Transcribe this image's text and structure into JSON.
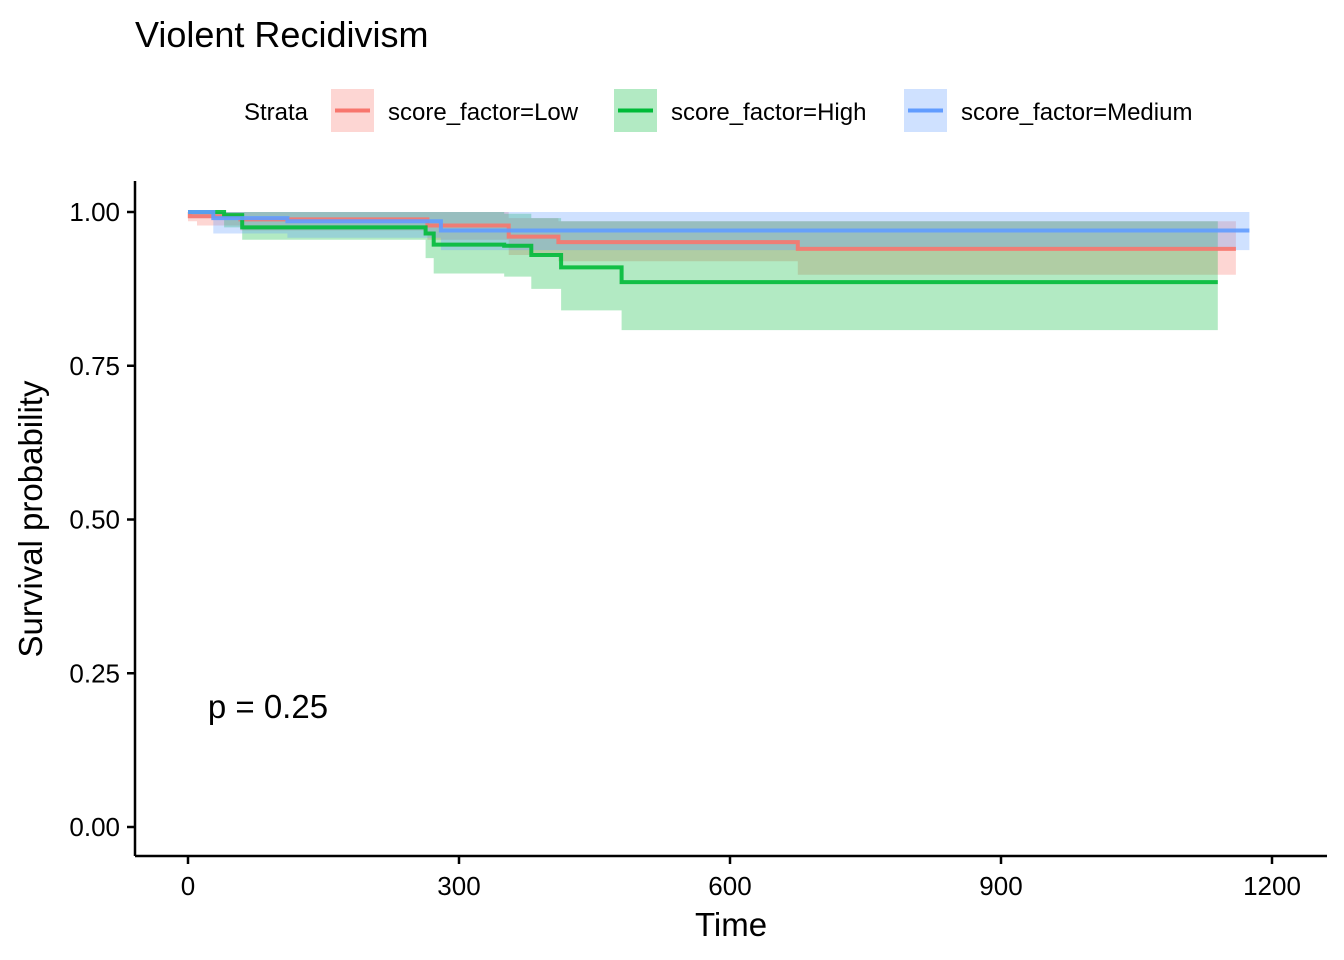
{
  "chart_data": {
    "type": "line",
    "title": "Violent Recidivism",
    "xlabel": "Time",
    "ylabel": "Survival probability",
    "xlim": [
      -20,
      1240
    ],
    "ylim": [
      -0.05,
      1.05
    ],
    "x_ticks": [
      0,
      300,
      600,
      900,
      1200
    ],
    "x_tick_labels": [
      "0",
      "300",
      "600",
      "900",
      "1200"
    ],
    "y_ticks": [
      0,
      0.25,
      0.5,
      0.75,
      1.0
    ],
    "y_tick_labels": [
      "0.00",
      "0.25",
      "0.50",
      "0.75",
      "1.00"
    ],
    "grid": false,
    "legend": {
      "title": "Strata",
      "position": "top",
      "items": [
        "score_factor=Low",
        "score_factor=High",
        "score_factor=Medium"
      ]
    },
    "annotation": "p = 0.25",
    "annotation_at": {
      "x": 22,
      "y": 0.195
    },
    "series": [
      {
        "name": "score_factor=Low",
        "color": "#F8766D",
        "steps": [
          [
            0,
            1.0
          ],
          [
            2,
            0.993
          ],
          [
            58,
            0.988
          ],
          [
            265,
            0.978
          ],
          [
            355,
            0.96
          ],
          [
            410,
            0.951
          ],
          [
            675,
            0.94
          ],
          [
            1160,
            0.94
          ]
        ],
        "lower": [
          [
            0,
            0.985
          ],
          [
            10,
            0.978
          ],
          [
            58,
            0.97
          ],
          [
            265,
            0.955
          ],
          [
            355,
            0.93
          ],
          [
            410,
            0.92
          ],
          [
            675,
            0.898
          ],
          [
            1160,
            0.898
          ]
        ],
        "upper": [
          [
            0,
            1.0
          ],
          [
            265,
            1.0
          ],
          [
            355,
            0.99
          ],
          [
            410,
            0.985
          ],
          [
            675,
            0.985
          ],
          [
            1160,
            0.985
          ]
        ]
      },
      {
        "name": "score_factor=High",
        "color": "#00BA38",
        "steps": [
          [
            0,
            1.0
          ],
          [
            40,
            0.995
          ],
          [
            60,
            0.975
          ],
          [
            263,
            0.965
          ],
          [
            272,
            0.947
          ],
          [
            350,
            0.945
          ],
          [
            380,
            0.93
          ],
          [
            413,
            0.91
          ],
          [
            480,
            0.886
          ],
          [
            1140,
            0.886
          ]
        ],
        "lower": [
          [
            0,
            0.995
          ],
          [
            40,
            0.975
          ],
          [
            60,
            0.955
          ],
          [
            263,
            0.925
          ],
          [
            272,
            0.9
          ],
          [
            350,
            0.895
          ],
          [
            380,
            0.875
          ],
          [
            413,
            0.84
          ],
          [
            480,
            0.808
          ],
          [
            1140,
            0.808
          ]
        ],
        "upper": [
          [
            0,
            1.0
          ],
          [
            263,
            1.0
          ],
          [
            350,
            0.997
          ],
          [
            380,
            0.99
          ],
          [
            413,
            0.985
          ],
          [
            480,
            0.985
          ],
          [
            1140,
            0.985
          ]
        ]
      },
      {
        "name": "score_factor=Medium",
        "color": "#619CFF",
        "steps": [
          [
            0,
            1.0
          ],
          [
            28,
            0.99
          ],
          [
            110,
            0.985
          ],
          [
            280,
            0.97
          ],
          [
            1175,
            0.97
          ]
        ],
        "lower": [
          [
            0,
            0.99
          ],
          [
            28,
            0.965
          ],
          [
            110,
            0.958
          ],
          [
            280,
            0.938
          ],
          [
            1175,
            0.938
          ]
        ],
        "upper": [
          [
            0,
            1.0
          ],
          [
            1175,
            1.0
          ]
        ]
      }
    ]
  }
}
